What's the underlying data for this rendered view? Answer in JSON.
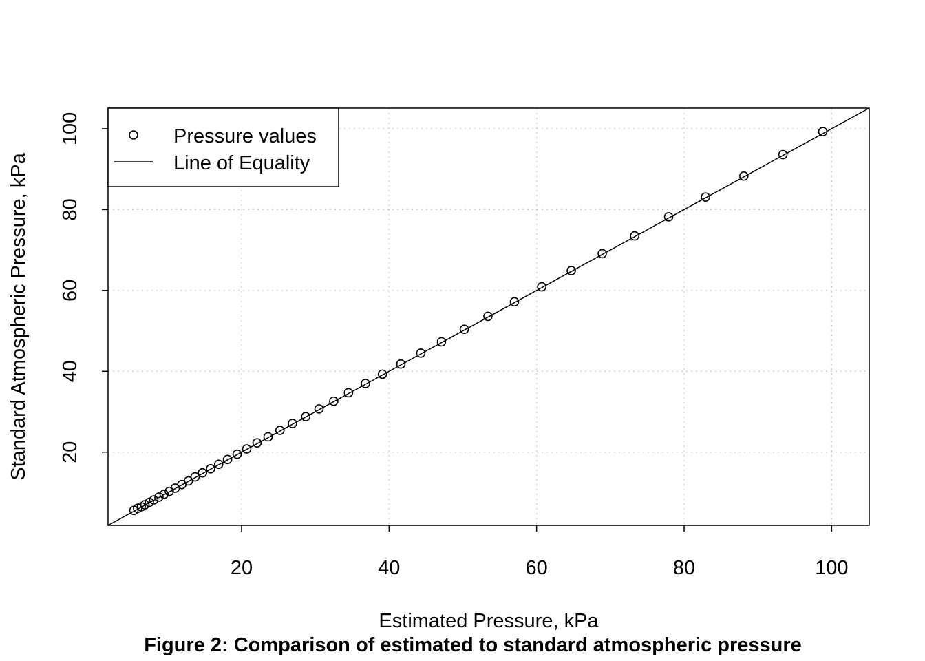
{
  "chart_data": {
    "type": "scatter",
    "title": "",
    "xlabel": "Estimated Pressure, kPa",
    "ylabel": "Standard Atmospheric Pressure, kPa",
    "xlim": [
      1.9,
      105.1
    ],
    "ylim": [
      1.9,
      105.1
    ],
    "x_ticks": [
      20,
      40,
      60,
      80,
      100
    ],
    "y_ticks": [
      20,
      40,
      60,
      80,
      100
    ],
    "grid": true,
    "legend_position": "top-left",
    "series": [
      {
        "name": "Pressure values",
        "kind": "points",
        "x": [
          5.4,
          5.9,
          6.4,
          6.9,
          7.5,
          8.1,
          8.8,
          9.5,
          10.2,
          11.0,
          11.9,
          12.8,
          13.7,
          14.7,
          15.8,
          16.9,
          18.1,
          19.4,
          20.7,
          22.1,
          23.6,
          25.2,
          26.9,
          28.7,
          30.5,
          32.5,
          34.5,
          36.8,
          39.1,
          41.6,
          44.3,
          47.1,
          50.2,
          53.4,
          57.0,
          60.7,
          64.7,
          68.9,
          73.3,
          77.9,
          82.9,
          88.1,
          93.4,
          98.8
        ],
        "y": [
          5.6,
          6.1,
          6.5,
          7.0,
          7.6,
          8.2,
          8.9,
          9.6,
          10.3,
          11.1,
          12.0,
          12.9,
          13.9,
          14.9,
          15.9,
          17.0,
          18.2,
          19.5,
          20.8,
          22.3,
          23.8,
          25.4,
          27.1,
          28.8,
          30.7,
          32.6,
          34.7,
          37.0,
          39.3,
          41.8,
          44.5,
          47.3,
          50.4,
          53.6,
          57.2,
          60.9,
          64.9,
          69.1,
          73.5,
          78.2,
          83.1,
          88.3,
          93.6,
          99.3
        ]
      },
      {
        "name": "Line of Equality",
        "kind": "line",
        "x": [
          1.9,
          105.1
        ],
        "y": [
          1.9,
          105.1
        ]
      }
    ],
    "caption": "Figure 2: Comparison of estimated to standard atmospheric pressure"
  }
}
